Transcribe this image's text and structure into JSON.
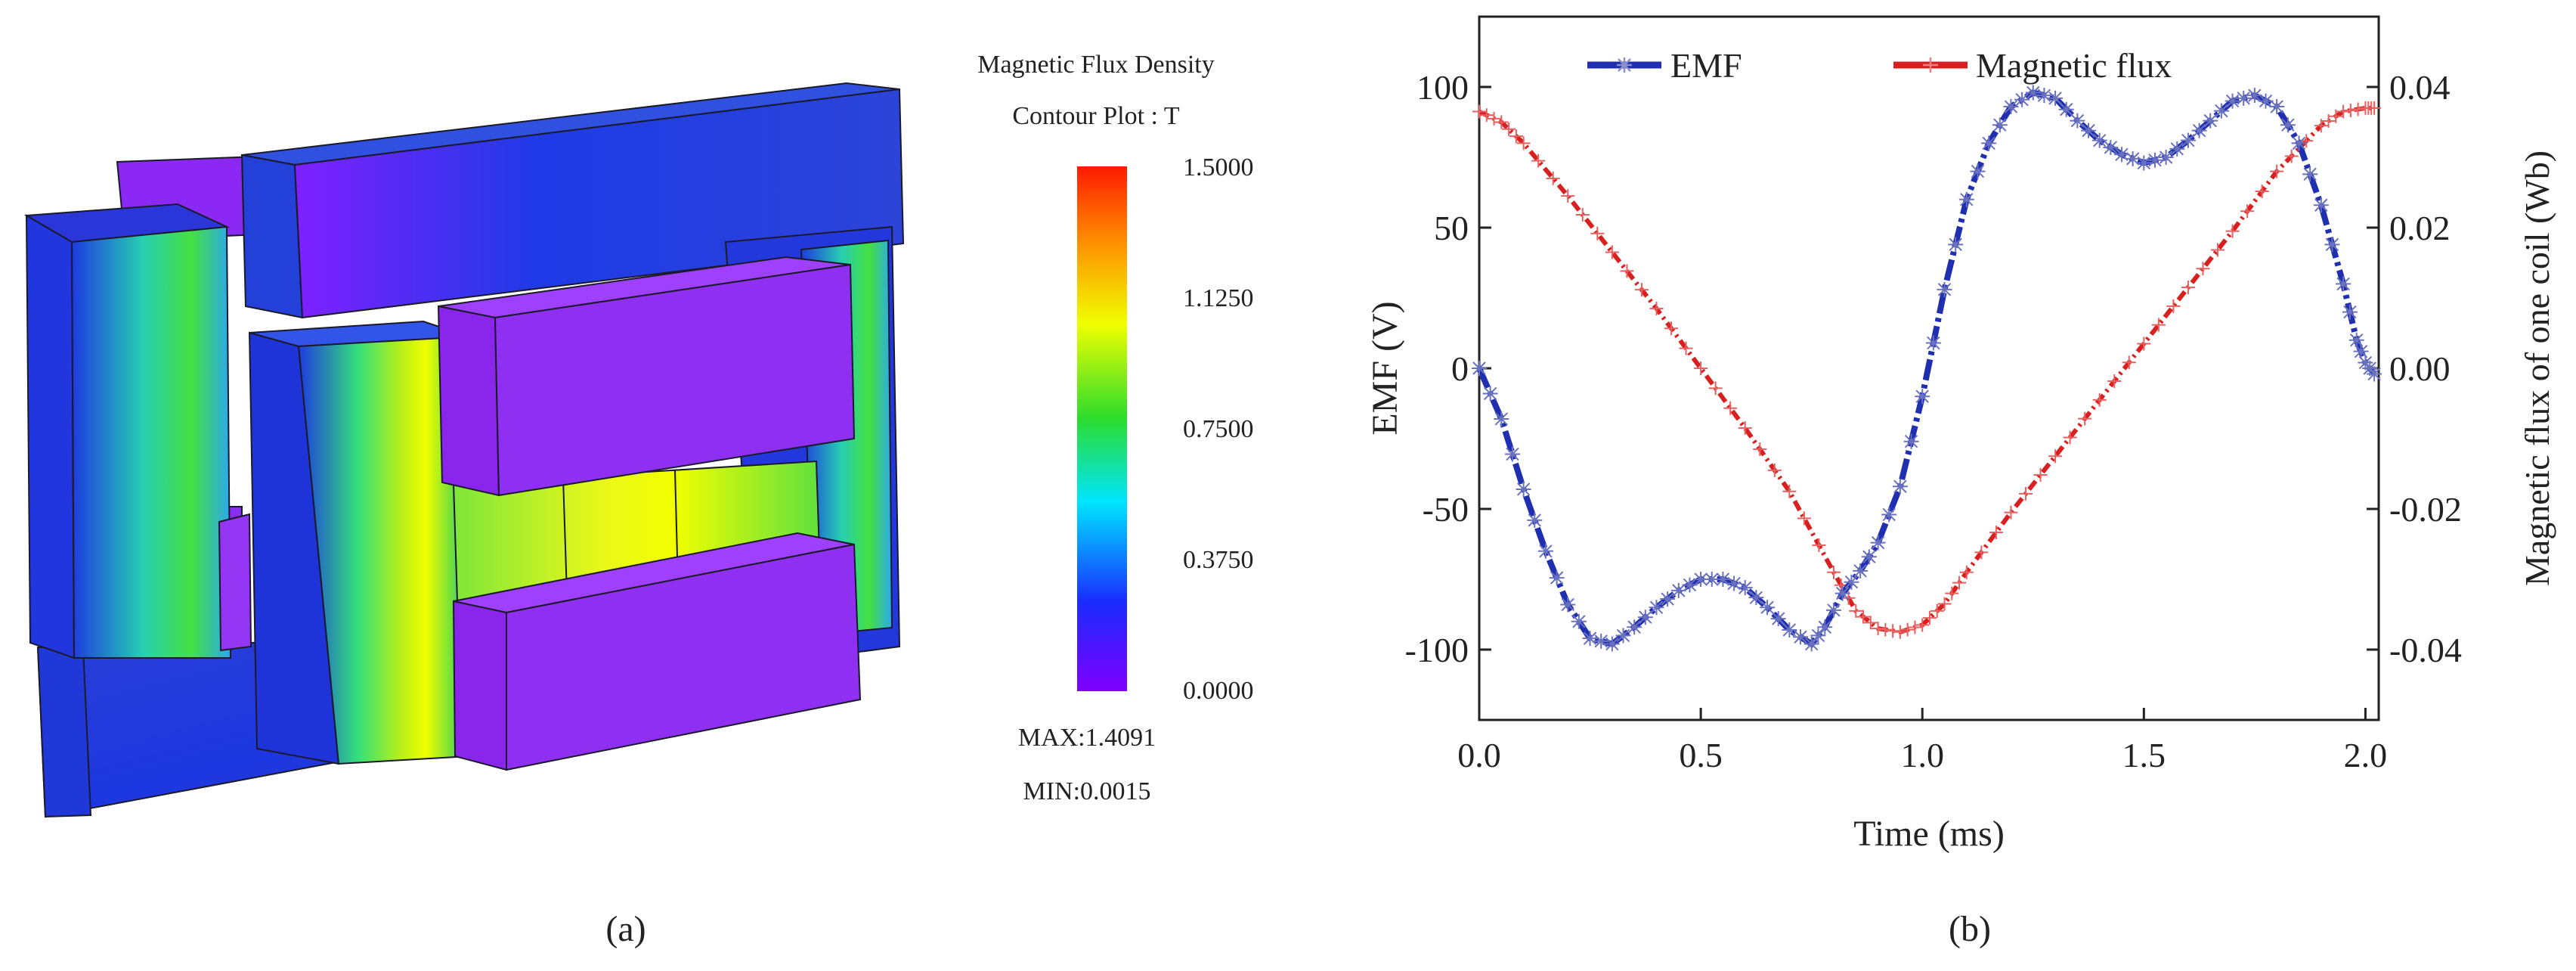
{
  "colors": {
    "emf": "#1f2fb0",
    "flux": "#d92020",
    "axis": "#222222",
    "cb_stops": [
      "#7f00ff",
      "#1a2cff",
      "#00e5ff",
      "#2ddc2d",
      "#f0ff00",
      "#ff8c00",
      "#ff1a00"
    ]
  },
  "panel_a": {
    "caption": "(a)",
    "legend_title_line1": "Magnetic Flux Density",
    "legend_title_line2": "Contour Plot : T",
    "ticks": [
      "1.5000",
      "1.1250",
      "0.7500",
      "0.3750",
      "0.0000"
    ],
    "max_label": "MAX:1.4091",
    "min_label": "MIN:0.0015",
    "colorbar_min": 0.0,
    "colorbar_max": 1.5
  },
  "panel_b": {
    "caption": "(b)"
  },
  "chart_data": {
    "type": "line",
    "xlabel": "Time (ms)",
    "ylabel": "EMF (V)",
    "y2label": "Magnetic flux of one coil (Wb)",
    "xlim": [
      0,
      2.03
    ],
    "ylim": [
      -125,
      125
    ],
    "y2lim": [
      -0.05,
      0.05
    ],
    "xticks": [
      0,
      0.5,
      1.0,
      1.5,
      2.0
    ],
    "xtick_labels": [
      "0.0",
      "0.5",
      "1.0",
      "1.5",
      "2.0"
    ],
    "yticks": [
      100,
      50,
      0,
      -50,
      -100
    ],
    "ytick_labels": [
      "100",
      "50",
      "0",
      "-50",
      "-100"
    ],
    "y2ticks": [
      0.04,
      0.02,
      0.0,
      -0.02,
      -0.04
    ],
    "y2tick_labels": [
      "0.04",
      "0.02",
      "0.00",
      "-0.02",
      "-0.04"
    ],
    "legend_position": "top",
    "series": [
      {
        "name": "EMF",
        "axis": "left",
        "marker": "asterisk",
        "x": [
          0,
          0.05,
          0.1,
          0.15,
          0.2,
          0.25,
          0.3,
          0.35,
          0.4,
          0.45,
          0.5,
          0.55,
          0.6,
          0.65,
          0.7,
          0.75,
          0.78,
          0.82,
          0.86,
          0.9,
          0.95,
          1.0,
          1.05,
          1.1,
          1.15,
          1.2,
          1.25,
          1.3,
          1.35,
          1.4,
          1.45,
          1.5,
          1.55,
          1.6,
          1.65,
          1.7,
          1.75,
          1.8,
          1.85,
          1.9,
          1.95,
          1.98,
          2.0,
          2.02
        ],
        "values": [
          0,
          -18,
          -43,
          -65,
          -84,
          -96,
          -98,
          -92,
          -85,
          -79,
          -75,
          -75,
          -78,
          -85,
          -93,
          -98,
          -92,
          -80,
          -72,
          -62,
          -42,
          -10,
          28,
          60,
          80,
          93,
          98,
          96,
          88,
          81,
          76,
          73,
          75,
          81,
          88,
          95,
          97,
          93,
          80,
          58,
          30,
          10,
          2,
          -2
        ]
      },
      {
        "name": "Magnetic flux",
        "axis": "right",
        "marker": "plus",
        "x": [
          0,
          0.05,
          0.1,
          0.2,
          0.3,
          0.4,
          0.5,
          0.6,
          0.7,
          0.8,
          0.85,
          0.9,
          0.95,
          1.0,
          1.05,
          1.1,
          1.2,
          1.3,
          1.4,
          1.5,
          1.6,
          1.7,
          1.8,
          1.9,
          1.95,
          2.0,
          2.02
        ],
        "values": [
          0.0365,
          0.035,
          0.032,
          0.0245,
          0.0165,
          0.0085,
          0.0,
          -0.0085,
          -0.0175,
          -0.029,
          -0.0345,
          -0.037,
          -0.0375,
          -0.0365,
          -0.0335,
          -0.029,
          -0.0205,
          -0.0125,
          -0.0045,
          0.0035,
          0.0115,
          0.0195,
          0.028,
          0.0345,
          0.0365,
          0.037,
          0.037
        ]
      }
    ]
  }
}
